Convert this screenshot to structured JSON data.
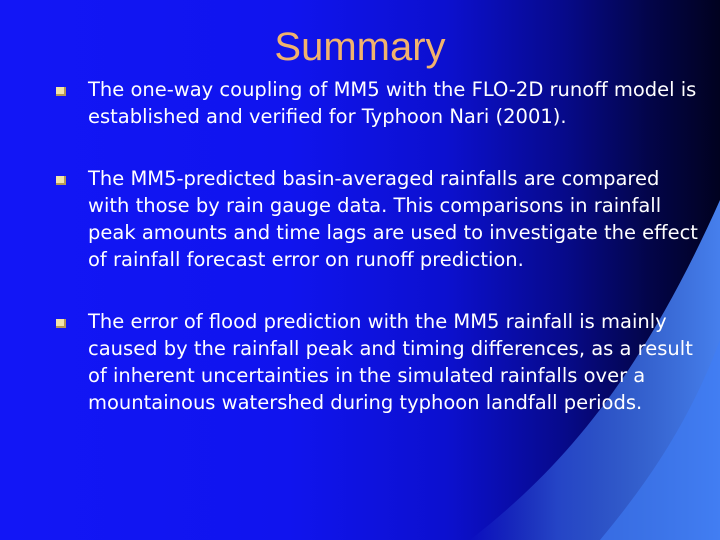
{
  "slide": {
    "title": "Summary",
    "accent_color": "#f2b36d",
    "bullet_icon": "square-bullet-icon",
    "bullets": [
      {
        "text": "The one-way coupling of MM5 with the FLO-2D runoff model is established and verified for Typhoon Nari (2001)."
      },
      {
        "text": "The MM5-predicted basin-averaged rainfalls are compared with those by rain gauge data.  This comparisons in rainfall peak amounts and time lags are used to investigate the effect of rainfall forecast error on runoff prediction."
      },
      {
        "text": "The error of flood prediction with the MM5 rainfall is mainly caused by the rainfall peak and timing differences, as a result of inherent uncertainties in the simulated rainfalls over a mountainous watershed during typhoon landfall periods."
      }
    ]
  }
}
